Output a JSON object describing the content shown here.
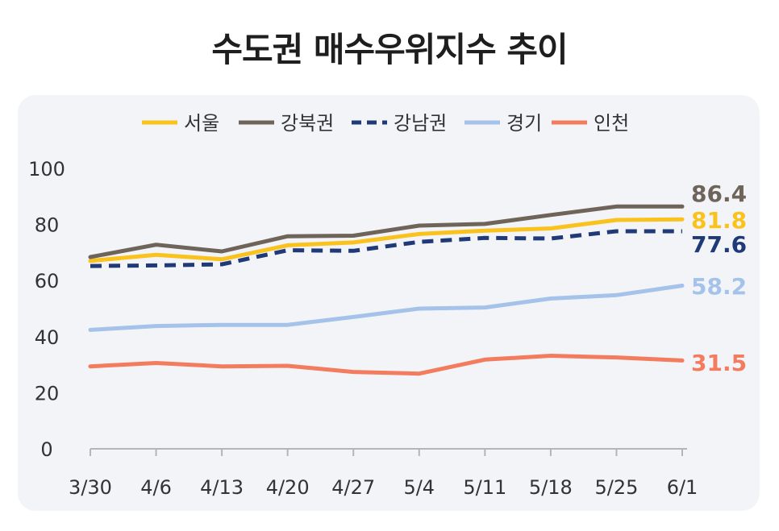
{
  "chart_data": {
    "type": "line",
    "title": "수도권 매수우위지수 추이",
    "categories": [
      "3/30",
      "4/6",
      "4/13",
      "4/20",
      "4/27",
      "5/4",
      "5/11",
      "5/18",
      "5/25",
      "6/1"
    ],
    "ylim": [
      0,
      100
    ],
    "yticks": [
      0,
      20,
      40,
      60,
      80,
      100
    ],
    "legend_position": "top",
    "series": [
      {
        "name": "서울",
        "color": "#F9C21C",
        "dash": false,
        "values": [
          67.0,
          69.2,
          67.6,
          72.6,
          73.6,
          76.6,
          77.8,
          78.6,
          81.6,
          81.8
        ],
        "end_label": "81.8"
      },
      {
        "name": "강북권",
        "color": "#6E6459",
        "dash": false,
        "values": [
          68.4,
          72.8,
          70.4,
          75.8,
          76.0,
          79.6,
          80.2,
          83.4,
          86.4,
          86.4
        ],
        "end_label": "86.4"
      },
      {
        "name": "강남권",
        "color": "#1F3A76",
        "dash": true,
        "values": [
          65.2,
          65.4,
          65.8,
          70.8,
          70.6,
          73.8,
          75.2,
          75.0,
          77.6,
          77.6
        ],
        "end_label": "77.6"
      },
      {
        "name": "경기",
        "color": "#A4C2EA",
        "dash": false,
        "values": [
          42.4,
          43.8,
          44.2,
          44.2,
          47.0,
          50.0,
          50.4,
          53.6,
          54.8,
          58.2
        ],
        "end_label": "58.2"
      },
      {
        "name": "인천",
        "color": "#F37B5E",
        "dash": false,
        "values": [
          29.4,
          30.6,
          29.4,
          29.6,
          27.4,
          26.8,
          31.8,
          33.2,
          32.6,
          31.5
        ],
        "end_label": "31.5"
      }
    ]
  }
}
